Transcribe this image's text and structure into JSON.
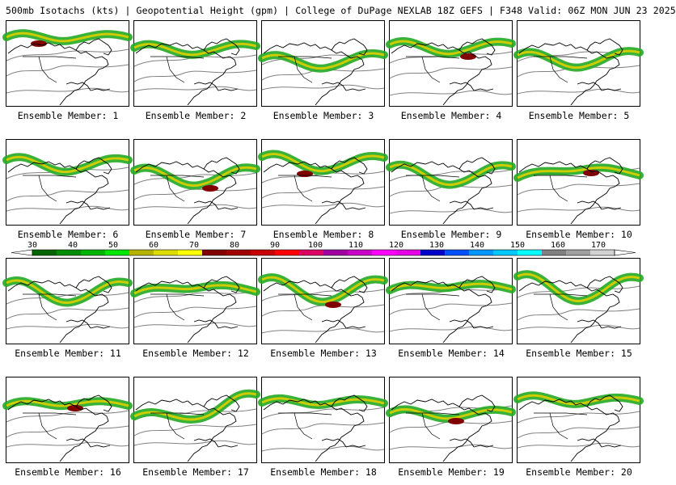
{
  "header": "500mb Isotachs (kts) | Geopotential Height (gpm) | College of DuPage NEXLAB  18Z GEFS | F348 Valid: 06Z MON JUN 23 2025",
  "members": [
    {
      "label": "Ensemble Member: 1"
    },
    {
      "label": "Ensemble Member: 2"
    },
    {
      "label": "Ensemble Member: 3"
    },
    {
      "label": "Ensemble Member: 4"
    },
    {
      "label": "Ensemble Member: 5"
    },
    {
      "label": "Ensemble Member: 6"
    },
    {
      "label": "Ensemble Member: 7"
    },
    {
      "label": "Ensemble Member: 8"
    },
    {
      "label": "Ensemble Member: 9"
    },
    {
      "label": "Ensemble Member: 10"
    },
    {
      "label": "Ensemble Member: 11"
    },
    {
      "label": "Ensemble Member: 12"
    },
    {
      "label": "Ensemble Member: 13"
    },
    {
      "label": "Ensemble Member: 14"
    },
    {
      "label": "Ensemble Member: 15"
    },
    {
      "label": "Ensemble Member: 16"
    },
    {
      "label": "Ensemble Member: 17"
    },
    {
      "label": "Ensemble Member: 18"
    },
    {
      "label": "Ensemble Member: 19"
    },
    {
      "label": "Ensemble Member: 20"
    }
  ],
  "colorbar": {
    "ticks": [
      "30",
      "40",
      "50",
      "60",
      "70",
      "80",
      "90",
      "100",
      "110",
      "120",
      "130",
      "140",
      "150",
      "160",
      "170"
    ],
    "colors": [
      "#006400",
      "#008c00",
      "#00b400",
      "#00e600",
      "#b4b400",
      "#dcdc00",
      "#ffff00",
      "#800000",
      "#a00000",
      "#c80000",
      "#ff0000",
      "#dc0064",
      "#a000a0",
      "#c800c8",
      "#ff00ff",
      "#e600e6",
      "#0000c8",
      "#0050ff",
      "#0096ff",
      "#00c8ff",
      "#00ffff",
      "#808080",
      "#a0a0a0",
      "#d2d2d2"
    ]
  },
  "legend_colors": {
    "isotach_low": "#22aa22",
    "isotach_mid": "#cccc00",
    "isotach_high": "#800000",
    "height_contour": "#808080",
    "coast": "#000000"
  }
}
